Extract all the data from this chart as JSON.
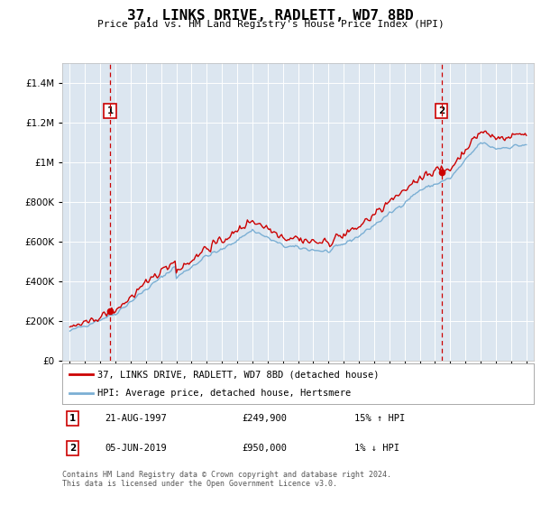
{
  "title": "37, LINKS DRIVE, RADLETT, WD7 8BD",
  "subtitle": "Price paid vs. HM Land Registry's House Price Index (HPI)",
  "background_color": "#dce6f0",
  "plot_bg_color": "#dce6f0",
  "red_line_color": "#cc0000",
  "blue_line_color": "#7bafd4",
  "annotation1": {
    "label": "1",
    "date_str": "21-AUG-1997",
    "price": 249900,
    "pct": "15%",
    "dir": "↑",
    "x_year": 1997.64
  },
  "annotation2": {
    "label": "2",
    "date_str": "05-JUN-2019",
    "price": 950000,
    "pct": "1%",
    "dir": "↓",
    "x_year": 2019.43
  },
  "legend_line1": "37, LINKS DRIVE, RADLETT, WD7 8BD (detached house)",
  "legend_line2": "HPI: Average price, detached house, Hertsmere",
  "footer1": "Contains HM Land Registry data © Crown copyright and database right 2024.",
  "footer2": "This data is licensed under the Open Government Licence v3.0.",
  "ylim": [
    0,
    1500000
  ],
  "yticks": [
    0,
    200000,
    400000,
    600000,
    800000,
    1000000,
    1200000,
    1400000
  ],
  "xlim": [
    1994.5,
    2025.5
  ],
  "xticks": [
    1995,
    1996,
    1997,
    1998,
    1999,
    2000,
    2001,
    2002,
    2003,
    2004,
    2005,
    2006,
    2007,
    2008,
    2009,
    2010,
    2011,
    2012,
    2013,
    2014,
    2015,
    2016,
    2017,
    2018,
    2019,
    2020,
    2021,
    2022,
    2023,
    2024,
    2025
  ]
}
